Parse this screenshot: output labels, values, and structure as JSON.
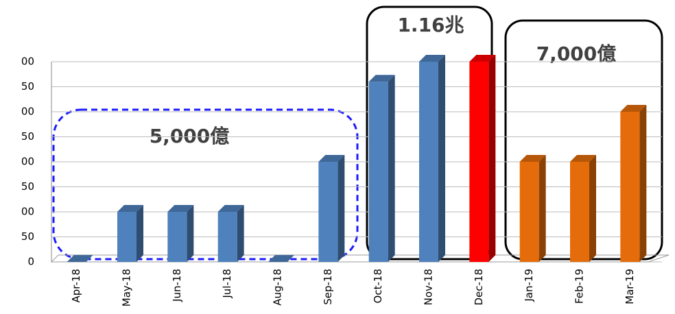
{
  "chart_data": {
    "type": "bar",
    "categories": [
      "Apr-18",
      "May-18",
      "Jun-18",
      "Jul-18",
      "Aug-18",
      "Sep-18",
      "Oct-18",
      "Nov-18",
      "Dec-18",
      "Jan-19",
      "Feb-19",
      "Mar-19"
    ],
    "values": [
      0,
      100,
      100,
      100,
      0,
      200,
      360,
      400,
      400,
      200,
      200,
      300
    ],
    "colors": [
      "#4f81bd",
      "#4f81bd",
      "#4f81bd",
      "#4f81bd",
      "#4f81bd",
      "#4f81bd",
      "#4f81bd",
      "#4f81bd",
      "#ff0000",
      "#e46c0a",
      "#e46c0a",
      "#e46c0a"
    ],
    "ylim": [
      0,
      400
    ],
    "yticks": [
      0,
      50,
      {
        "value": 100,
        "label": "00"
      },
      {
        "value": 150,
        "label": "50"
      },
      {
        "value": 200,
        "label": "00"
      },
      {
        "value": 250,
        "label": "50"
      },
      {
        "value": 300,
        "label": "00"
      },
      {
        "value": 350,
        "label": "50"
      },
      {
        "value": 400,
        "label": "00"
      }
    ],
    "grid": true,
    "annotations": [
      "5,000億",
      "1.16兆",
      "7,000億"
    ]
  }
}
